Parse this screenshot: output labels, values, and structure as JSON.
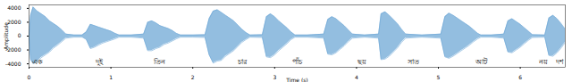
{
  "chart_data": {
    "type": "area",
    "x_label": "Time (s)",
    "y_label": "Amplitude",
    "xlim": [
      0,
      6.55
    ],
    "xticks": [
      0,
      1,
      2,
      3,
      4,
      5,
      6
    ],
    "ylim": [
      -4500,
      4500
    ],
    "yticks": [
      -4000,
      -2000,
      0,
      2000,
      4000
    ],
    "grid": false,
    "x": [
      0,
      0.02,
      0.05,
      0.1,
      0.15,
      0.2,
      0.25,
      0.3,
      0.35,
      0.4,
      0.45,
      0.55,
      0.65,
      0.7,
      0.75,
      0.8,
      0.85,
      0.9,
      0.95,
      1.0,
      1.05,
      1.1,
      1.25,
      1.4,
      1.45,
      1.5,
      1.55,
      1.6,
      1.65,
      1.7,
      1.75,
      1.8,
      1.85,
      2.0,
      2.15,
      2.2,
      2.25,
      2.3,
      2.35,
      2.4,
      2.45,
      2.5,
      2.55,
      2.6,
      2.65,
      2.7,
      2.85,
      2.9,
      2.95,
      3.0,
      3.05,
      3.1,
      3.15,
      3.2,
      3.25,
      3.4,
      3.6,
      3.65,
      3.7,
      3.75,
      3.8,
      3.85,
      3.9,
      3.95,
      4.1,
      4.27,
      4.3,
      4.35,
      4.4,
      4.45,
      4.5,
      4.55,
      4.6,
      4.8,
      5.03,
      5.08,
      5.13,
      5.18,
      5.23,
      5.28,
      5.33,
      5.38,
      5.43,
      5.48,
      5.52,
      5.65,
      5.8,
      5.85,
      5.9,
      5.95,
      6.0,
      6.05,
      6.1,
      6.15,
      6.3,
      6.35,
      6.4,
      6.45,
      6.5,
      6.55
    ],
    "series": [
      {
        "color": "#6fa8d6",
        "values": [
          200,
          3000,
          4200,
          3600,
          3200,
          2800,
          2200,
          1800,
          1400,
          900,
          300,
          150,
          150,
          600,
          1700,
          1500,
          1300,
          1100,
          900,
          700,
          400,
          150,
          150,
          300,
          2000,
          2200,
          1900,
          1500,
          1300,
          1100,
          800,
          400,
          150,
          150,
          200,
          2500,
          3600,
          3800,
          3400,
          3000,
          2600,
          2200,
          1600,
          1000,
          500,
          150,
          200,
          2800,
          3200,
          2800,
          2200,
          1700,
          1200,
          600,
          150,
          150,
          300,
          2400,
          2800,
          2500,
          2000,
          1500,
          900,
          300,
          150,
          300,
          3200,
          3500,
          3000,
          2400,
          1800,
          1000,
          300,
          150,
          300,
          2800,
          3300,
          3000,
          2600,
          2200,
          1800,
          1400,
          900,
          400,
          150,
          150,
          300,
          2200,
          2500,
          2100,
          1700,
          1200,
          700,
          200,
          150,
          2600,
          3000,
          2500,
          1800,
          1000
        ]
      },
      {
        "color": "#6fa8d6",
        "values": [
          -200,
          -3400,
          -4000,
          -3700,
          -3100,
          -2700,
          -2300,
          -1700,
          -1300,
          -800,
          -300,
          -150,
          -150,
          -500,
          -1800,
          -1600,
          -1300,
          -1000,
          -800,
          -600,
          -400,
          -150,
          -150,
          -300,
          -2100,
          -2100,
          -1800,
          -1600,
          -1200,
          -1000,
          -700,
          -400,
          -150,
          -150,
          -200,
          -2700,
          -3900,
          -3600,
          -3500,
          -2900,
          -2500,
          -2100,
          -1500,
          -900,
          -500,
          -150,
          -200,
          -3000,
          -3100,
          -2700,
          -2100,
          -1600,
          -1100,
          -500,
          -150,
          -150,
          -300,
          -2600,
          -2700,
          -2400,
          -1900,
          -1400,
          -800,
          -300,
          -150,
          -300,
          -3400,
          -3300,
          -2900,
          -2300,
          -1700,
          -900,
          -300,
          -150,
          -300,
          -3000,
          -3200,
          -2900,
          -2500,
          -2100,
          -1700,
          -1300,
          -800,
          -400,
          -150,
          -150,
          -300,
          -2300,
          -2400,
          -2000,
          -1600,
          -1100,
          -600,
          -200,
          -150,
          -2800,
          -2900,
          -2400,
          -1700,
          -900
        ]
      }
    ],
    "annotations": [
      {
        "text": "এক",
        "x": 0.1,
        "y": -3700
      },
      {
        "text": "দুই",
        "x": 0.86,
        "y": -3700
      },
      {
        "text": "তিন",
        "x": 1.59,
        "y": -3700
      },
      {
        "text": "চার",
        "x": 2.6,
        "y": -3700
      },
      {
        "text": "পাঁচ",
        "x": 3.28,
        "y": -3700
      },
      {
        "text": "ছয়",
        "x": 4.07,
        "y": -3700
      },
      {
        "text": "সাত",
        "x": 4.69,
        "y": -3700
      },
      {
        "text": "আট",
        "x": 5.52,
        "y": -3700
      },
      {
        "text": "নয়",
        "x": 6.28,
        "y": -3700
      },
      {
        "text": "দশ",
        "x": 6.48,
        "y": -3700
      }
    ]
  }
}
